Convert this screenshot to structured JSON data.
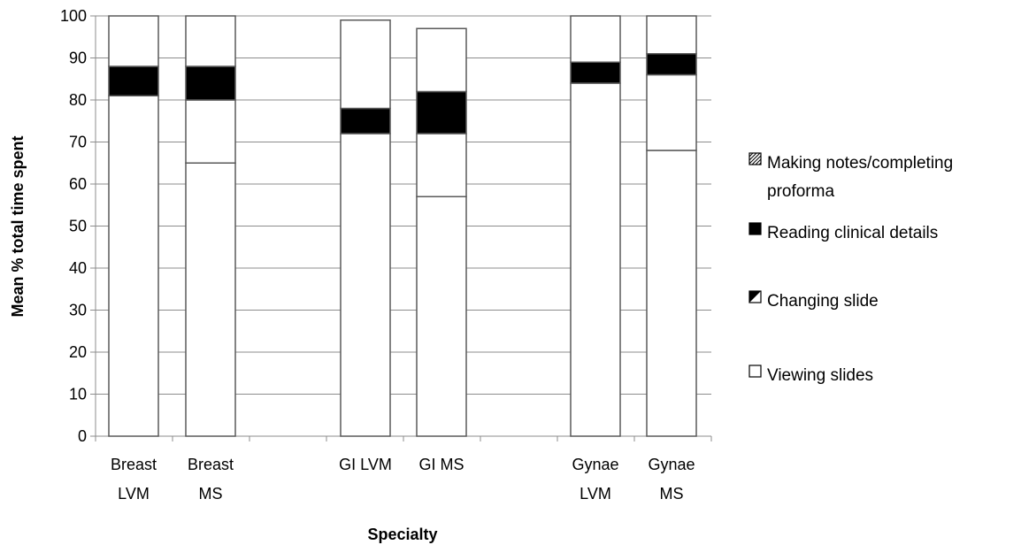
{
  "chart_data": {
    "type": "bar",
    "stacked": true,
    "xlabel": "Specialty",
    "ylabel": "Mean % total time spent",
    "ylim": [
      0,
      100
    ],
    "yticks": [
      0,
      10,
      20,
      30,
      40,
      50,
      60,
      70,
      80,
      90,
      100
    ],
    "grid": true,
    "legend": "right",
    "categories": [
      "Breast LVM",
      "Breast MS",
      "GI LVM",
      "GI MS",
      "Gynae LVM",
      "Gynae MS"
    ],
    "category_labels": [
      [
        "Breast",
        "LVM"
      ],
      [
        "Breast",
        "MS"
      ],
      [
        "GI LVM"
      ],
      [
        "GI MS"
      ],
      [
        "Gynae",
        "LVM"
      ],
      [
        "Gynae",
        "MS"
      ]
    ],
    "series": [
      {
        "name": "Viewing slides",
        "values": [
          81,
          65,
          72,
          57,
          84,
          68
        ],
        "fill": "#ffffff"
      },
      {
        "name": "Changing slide",
        "values": [
          0,
          15,
          0,
          15,
          0,
          18
        ],
        "fill": "#ffffff"
      },
      {
        "name": "Reading clinical details",
        "values": [
          7,
          8,
          6,
          10,
          5,
          5
        ],
        "fill": "#000000"
      },
      {
        "name": "Making notes/completing proforma",
        "values": [
          12,
          12,
          21,
          15,
          11,
          9
        ],
        "fill": "#ffffff"
      }
    ],
    "legend_display": [
      {
        "lines": [
          "Making notes/completing",
          "proforma"
        ],
        "swatch": "hatched"
      },
      {
        "lines": [
          "Reading clinical details"
        ],
        "swatch": "solid"
      },
      {
        "lines": [
          "Changing slide"
        ],
        "swatch": "half"
      },
      {
        "lines": [
          "Viewing slides"
        ],
        "swatch": "empty"
      }
    ]
  }
}
